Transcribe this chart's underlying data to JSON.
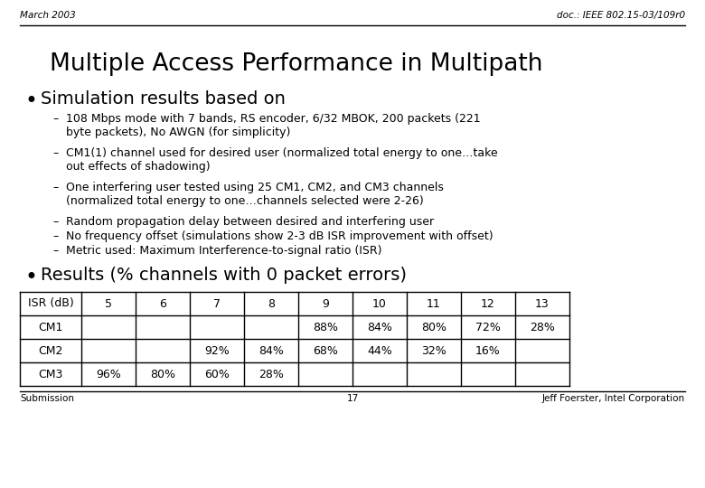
{
  "header_left": "March 2003",
  "header_right": "doc.: IEEE 802.15-03/109r0",
  "title": "Multiple Access Performance in Multipath",
  "bullet1": "Simulation results based on",
  "sub_bullets_line1": [
    "108 Mbps mode with 7 bands, RS encoder, 6/32 MBOK, 200 packets (221",
    "CM1(1) channel used for desired user (normalized total energy to one…take",
    "One interfering user tested using 25 CM1, CM2, and CM3 channels",
    "Random propagation delay between desired and interfering user",
    "No frequency offset (simulations show 2-3 dB ISR improvement with offset)",
    "Metric used: Maximum Interference-to-signal ratio (ISR)"
  ],
  "sub_bullets_line2": [
    "byte packets), No AWGN (for simplicity)",
    "out effects of shadowing)",
    "(normalized total energy to one…channels selected were 2-26)",
    "",
    "",
    ""
  ],
  "bullet2": "Results (% channels with 0 packet errors)",
  "table_headers": [
    "ISR (dB)",
    "5",
    "6",
    "7",
    "8",
    "9",
    "10",
    "11",
    "12",
    "13"
  ],
  "table_rows": [
    [
      "CM1",
      "",
      "",
      "",
      "",
      "88%",
      "84%",
      "80%",
      "72%",
      "28%"
    ],
    [
      "CM2",
      "",
      "",
      "92%",
      "84%",
      "68%",
      "44%",
      "32%",
      "16%",
      ""
    ],
    [
      "CM3",
      "96%",
      "80%",
      "60%",
      "28%",
      "",
      "",
      "",
      "",
      ""
    ]
  ],
  "footer_left": "Submission",
  "footer_center": "17",
  "footer_right": "Jeff Foerster, Intel Corporation",
  "bg_color": "#ffffff",
  "text_color": "#000000"
}
